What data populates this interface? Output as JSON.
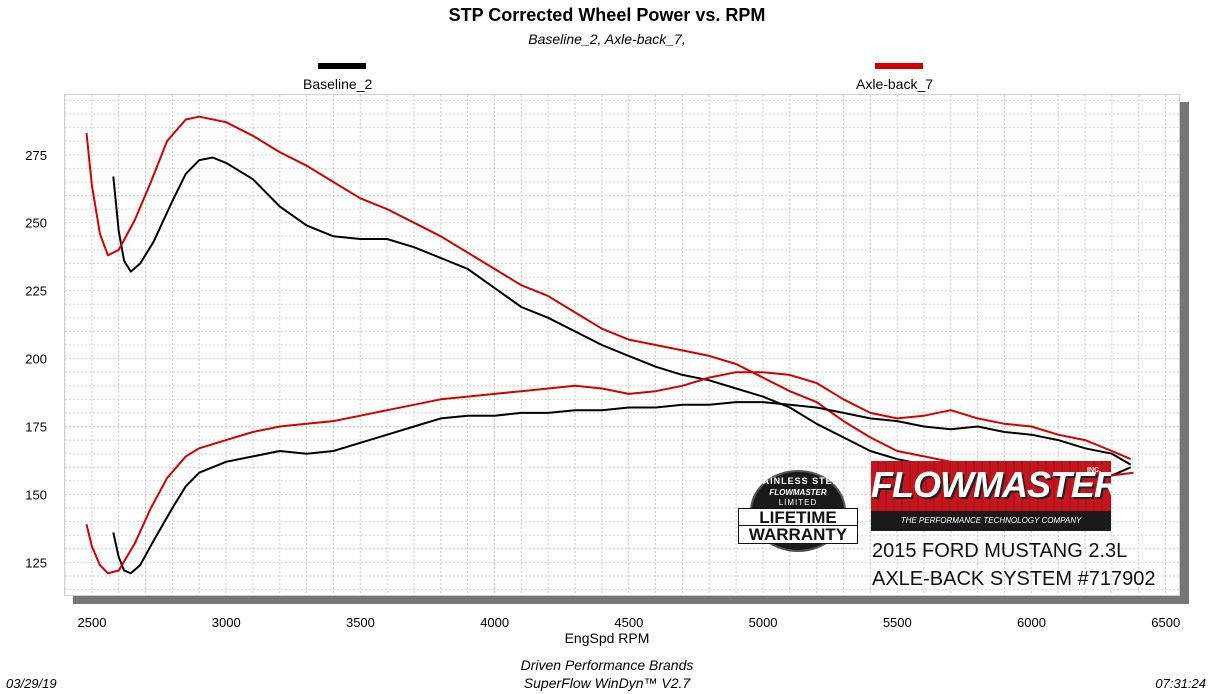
{
  "chart_data": {
    "type": "line",
    "title": "STP Corrected Wheel Power vs. RPM",
    "subtitle": "Baseline_2, Axle-back_7,",
    "xlabel": "EngSpd  RPM",
    "ylabel": "",
    "xlim": [
      2500,
      6650
    ],
    "ylim": [
      113,
      297
    ],
    "x_ticks": [
      2500,
      3000,
      3500,
      4000,
      4500,
      5000,
      5500,
      6000,
      6500
    ],
    "y_ticks": [
      125,
      150,
      175,
      200,
      225,
      250,
      275
    ],
    "grid": true,
    "legend": [
      {
        "name": "Baseline_2",
        "color": "#000000"
      },
      {
        "name": "Axle-back_7",
        "color": "#d40000"
      }
    ],
    "series": [
      {
        "name": "Baseline_2 (upper)",
        "color": "#000000",
        "points": [
          [
            2680,
            267
          ],
          [
            2700,
            247
          ],
          [
            2720,
            236
          ],
          [
            2745,
            232
          ],
          [
            2780,
            235
          ],
          [
            2830,
            243
          ],
          [
            2900,
            258
          ],
          [
            2950,
            268
          ],
          [
            3000,
            273
          ],
          [
            3050,
            274
          ],
          [
            3100,
            272
          ],
          [
            3200,
            266
          ],
          [
            3300,
            256
          ],
          [
            3400,
            249
          ],
          [
            3500,
            245
          ],
          [
            3600,
            244
          ],
          [
            3700,
            244
          ],
          [
            3800,
            241
          ],
          [
            3900,
            237
          ],
          [
            4000,
            233
          ],
          [
            4100,
            226
          ],
          [
            4200,
            219
          ],
          [
            4300,
            215
          ],
          [
            4400,
            210
          ],
          [
            4500,
            205
          ],
          [
            4600,
            201
          ],
          [
            4700,
            197
          ],
          [
            4800,
            194
          ],
          [
            4900,
            192
          ],
          [
            5000,
            189
          ],
          [
            5100,
            186
          ],
          [
            5200,
            182
          ],
          [
            5300,
            176
          ],
          [
            5400,
            171
          ],
          [
            5500,
            166
          ],
          [
            5600,
            163
          ],
          [
            5700,
            161
          ],
          [
            5800,
            160
          ],
          [
            5900,
            159
          ],
          [
            6000,
            158
          ],
          [
            6100,
            157
          ],
          [
            6200,
            157
          ],
          [
            6300,
            157
          ],
          [
            6400,
            157
          ],
          [
            6470,
            160
          ]
        ]
      },
      {
        "name": "Axle-back_7 (upper)",
        "color": "#d40000",
        "points": [
          [
            2580,
            283
          ],
          [
            2600,
            264
          ],
          [
            2630,
            246
          ],
          [
            2660,
            238
          ],
          [
            2700,
            240
          ],
          [
            2760,
            251
          ],
          [
            2820,
            265
          ],
          [
            2880,
            280
          ],
          [
            2950,
            288
          ],
          [
            3000,
            289
          ],
          [
            3100,
            287
          ],
          [
            3200,
            282
          ],
          [
            3300,
            276
          ],
          [
            3400,
            271
          ],
          [
            3500,
            265
          ],
          [
            3600,
            259
          ],
          [
            3700,
            255
          ],
          [
            3800,
            250
          ],
          [
            3900,
            245
          ],
          [
            4000,
            239
          ],
          [
            4100,
            233
          ],
          [
            4200,
            227
          ],
          [
            4300,
            223
          ],
          [
            4400,
            217
          ],
          [
            4500,
            211
          ],
          [
            4600,
            207
          ],
          [
            4700,
            205
          ],
          [
            4800,
            203
          ],
          [
            4900,
            201
          ],
          [
            5000,
            198
          ],
          [
            5100,
            193
          ],
          [
            5200,
            188
          ],
          [
            5300,
            184
          ],
          [
            5400,
            177
          ],
          [
            5500,
            171
          ],
          [
            5600,
            166
          ],
          [
            5700,
            164
          ],
          [
            5800,
            162
          ],
          [
            5900,
            161
          ],
          [
            6000,
            160
          ],
          [
            6100,
            159
          ],
          [
            6200,
            158
          ],
          [
            6300,
            158
          ],
          [
            6400,
            157
          ],
          [
            6480,
            158
          ]
        ]
      },
      {
        "name": "Baseline_2 (lower)",
        "color": "#000000",
        "points": [
          [
            2680,
            136
          ],
          [
            2700,
            127
          ],
          [
            2720,
            122
          ],
          [
            2745,
            121
          ],
          [
            2780,
            124
          ],
          [
            2830,
            133
          ],
          [
            2900,
            145
          ],
          [
            2950,
            153
          ],
          [
            3000,
            158
          ],
          [
            3100,
            162
          ],
          [
            3200,
            164
          ],
          [
            3300,
            166
          ],
          [
            3400,
            165
          ],
          [
            3500,
            166
          ],
          [
            3600,
            169
          ],
          [
            3700,
            172
          ],
          [
            3800,
            175
          ],
          [
            3900,
            178
          ],
          [
            4000,
            179
          ],
          [
            4100,
            179
          ],
          [
            4200,
            180
          ],
          [
            4300,
            180
          ],
          [
            4400,
            181
          ],
          [
            4500,
            181
          ],
          [
            4600,
            182
          ],
          [
            4700,
            182
          ],
          [
            4800,
            183
          ],
          [
            4900,
            183
          ],
          [
            5000,
            184
          ],
          [
            5100,
            184
          ],
          [
            5200,
            183
          ],
          [
            5300,
            182
          ],
          [
            5400,
            180
          ],
          [
            5500,
            178
          ],
          [
            5600,
            177
          ],
          [
            5700,
            175
          ],
          [
            5800,
            174
          ],
          [
            5900,
            175
          ],
          [
            6000,
            173
          ],
          [
            6100,
            172
          ],
          [
            6200,
            170
          ],
          [
            6300,
            167
          ],
          [
            6400,
            165
          ],
          [
            6470,
            161
          ]
        ]
      },
      {
        "name": "Axle-back_7 (lower)",
        "color": "#d40000",
        "points": [
          [
            2580,
            139
          ],
          [
            2600,
            131
          ],
          [
            2630,
            124
          ],
          [
            2660,
            121
          ],
          [
            2700,
            122
          ],
          [
            2760,
            132
          ],
          [
            2820,
            145
          ],
          [
            2880,
            156
          ],
          [
            2950,
            164
          ],
          [
            3000,
            167
          ],
          [
            3100,
            170
          ],
          [
            3200,
            173
          ],
          [
            3300,
            175
          ],
          [
            3400,
            176
          ],
          [
            3500,
            177
          ],
          [
            3600,
            179
          ],
          [
            3700,
            181
          ],
          [
            3800,
            183
          ],
          [
            3900,
            185
          ],
          [
            4000,
            186
          ],
          [
            4100,
            187
          ],
          [
            4200,
            188
          ],
          [
            4300,
            189
          ],
          [
            4400,
            190
          ],
          [
            4500,
            189
          ],
          [
            4600,
            187
          ],
          [
            4700,
            188
          ],
          [
            4800,
            190
          ],
          [
            4900,
            193
          ],
          [
            5000,
            195
          ],
          [
            5100,
            195
          ],
          [
            5200,
            194
          ],
          [
            5300,
            191
          ],
          [
            5400,
            185
          ],
          [
            5500,
            180
          ],
          [
            5600,
            178
          ],
          [
            5700,
            179
          ],
          [
            5800,
            181
          ],
          [
            5900,
            178
          ],
          [
            6000,
            176
          ],
          [
            6100,
            175
          ],
          [
            6200,
            172
          ],
          [
            6300,
            170
          ],
          [
            6400,
            166
          ],
          [
            6470,
            163
          ]
        ]
      }
    ]
  },
  "footer": {
    "company": "Driven Performance Brands",
    "software": "SuperFlow WinDyn™  V2.7",
    "date": "03/29/19",
    "time": "07:31:24"
  },
  "badge": {
    "arc_text": "STAINLESS STEEL",
    "brand": "FLOWMASTER",
    "limited": "LIMITED",
    "line1": "LIFETIME",
    "line2": "WARRANTY"
  },
  "logo": {
    "name": "FLOWMASTER",
    "inc": "INC.",
    "tagline": "THE PERFORMANCE TECHNOLOGY COMPANY"
  },
  "product": {
    "line1": "2015 FORD MUSTANG 2.3L",
    "line2": "AXLE-BACK SYSTEM #717902"
  }
}
